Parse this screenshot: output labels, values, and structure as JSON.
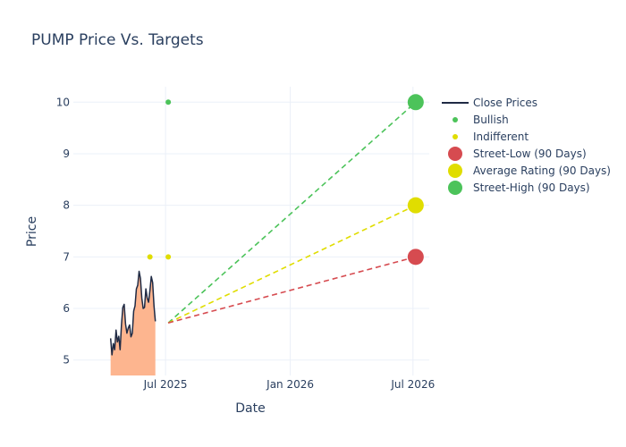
{
  "chart_data": {
    "type": "line",
    "title": "PUMP Price Vs. Targets",
    "xlabel": "Date",
    "ylabel": "Price",
    "x_axis": {
      "type": "date",
      "range": [
        "2025-02-15",
        "2026-07-25"
      ],
      "ticks": [
        {
          "date": "2025-07-01",
          "label": "Jul 2025"
        },
        {
          "date": "2026-01-01",
          "label": "Jan 2026"
        },
        {
          "date": "2026-07-01",
          "label": "Jul 2026"
        }
      ]
    },
    "y_axis": {
      "range": [
        4.7,
        10.3
      ],
      "ticks": [
        5,
        6,
        7,
        8,
        9,
        10
      ]
    },
    "grid": true,
    "legend_position": "right",
    "colors": {
      "close": "#1f2a44",
      "fill": "#fdb58f",
      "bullish": "#4cc35a",
      "indifferent": "#e0dd00",
      "street_low": "#d64b50",
      "average": "#e0dd00",
      "street_high": "#4cc35a"
    },
    "series": [
      {
        "name": "Close Prices",
        "type": "line",
        "points": [
          [
            "2025-04-11",
            5.42
          ],
          [
            "2025-04-13",
            5.1
          ],
          [
            "2025-04-15",
            5.32
          ],
          [
            "2025-04-17",
            5.2
          ],
          [
            "2025-04-19",
            5.58
          ],
          [
            "2025-04-21",
            5.35
          ],
          [
            "2025-04-23",
            5.46
          ],
          [
            "2025-04-25",
            5.2
          ],
          [
            "2025-04-27",
            5.68
          ],
          [
            "2025-04-29",
            6.02
          ],
          [
            "2025-05-01",
            6.08
          ],
          [
            "2025-05-03",
            5.7
          ],
          [
            "2025-05-05",
            5.52
          ],
          [
            "2025-05-07",
            5.62
          ],
          [
            "2025-05-09",
            5.68
          ],
          [
            "2025-05-11",
            5.45
          ],
          [
            "2025-05-13",
            5.52
          ],
          [
            "2025-05-15",
            5.95
          ],
          [
            "2025-05-17",
            6.05
          ],
          [
            "2025-05-19",
            6.38
          ],
          [
            "2025-05-21",
            6.45
          ],
          [
            "2025-05-23",
            6.72
          ],
          [
            "2025-05-25",
            6.58
          ],
          [
            "2025-05-27",
            6.2
          ],
          [
            "2025-05-29",
            6.0
          ],
          [
            "2025-05-31",
            6.02
          ],
          [
            "2025-06-02",
            6.38
          ],
          [
            "2025-06-04",
            6.2
          ],
          [
            "2025-06-06",
            6.12
          ],
          [
            "2025-06-08",
            6.35
          ],
          [
            "2025-06-10",
            6.62
          ],
          [
            "2025-06-12",
            6.5
          ],
          [
            "2025-06-14",
            6.05
          ],
          [
            "2025-06-16",
            5.75
          ]
        ]
      },
      {
        "name": "Bullish",
        "type": "markers",
        "points": [
          [
            "2025-07-05",
            10
          ]
        ]
      },
      {
        "name": "Indifferent",
        "type": "markers",
        "points": [
          [
            "2025-06-08",
            7
          ],
          [
            "2025-07-05",
            7
          ]
        ]
      },
      {
        "name": "Street-Low (90 Days)",
        "type": "target",
        "from": [
          "2025-07-05",
          5.72
        ],
        "to": [
          "2026-07-05",
          7
        ]
      },
      {
        "name": "Average Rating (90 Days)",
        "type": "target",
        "from": [
          "2025-07-05",
          5.72
        ],
        "to": [
          "2026-07-05",
          8
        ]
      },
      {
        "name": "Street-High (90 Days)",
        "type": "target",
        "from": [
          "2025-07-05",
          5.72
        ],
        "to": [
          "2026-07-05",
          10
        ]
      }
    ]
  }
}
